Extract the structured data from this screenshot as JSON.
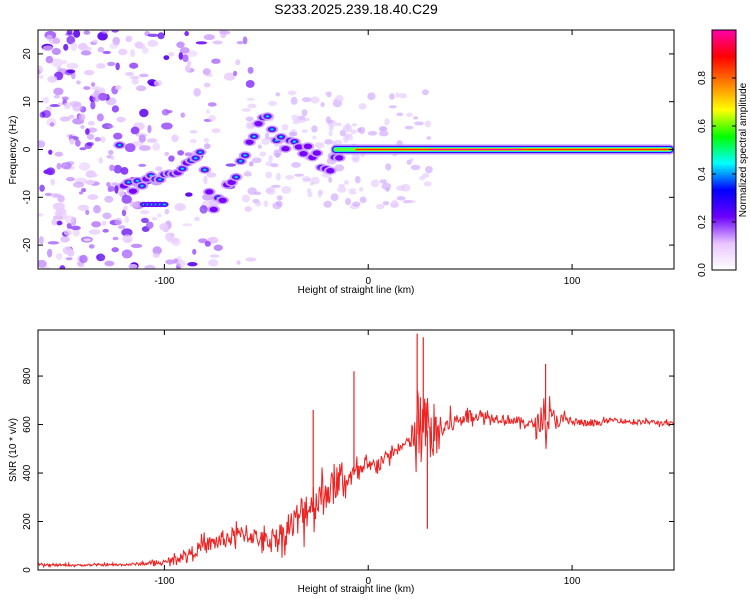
{
  "title": "S233.2025.239.18.40.C29",
  "chart_data": [
    {
      "type": "heatmap",
      "panel": "spectrogram",
      "xlabel": "Height of straight line (km)",
      "ylabel": "Frequency (Hz)",
      "xlim": [
        -162,
        150
      ],
      "ylim": [
        -25,
        25
      ],
      "xticks": [
        -100,
        0,
        100
      ],
      "yticks": [
        -20,
        -10,
        0,
        10,
        20
      ],
      "ridge": {
        "x": [
          -120,
          -110,
          -100,
          -90,
          -82,
          -76,
          -70,
          -62,
          -56,
          -50,
          -46,
          -40,
          -34,
          -28,
          -22,
          -18,
          -14,
          -8,
          0,
          10,
          20,
          30,
          60,
          80,
          100,
          120,
          148
        ],
        "y": [
          -8,
          -7,
          -5,
          -3,
          -1,
          -12,
          -9,
          -3,
          3,
          7,
          3,
          1,
          1,
          -1,
          -3,
          -4,
          -1,
          0,
          0,
          0,
          0,
          0,
          0,
          0,
          0,
          0,
          0
        ]
      },
      "colorbar": {
        "label": "Normalized spectral amplitude",
        "range": [
          0,
          1
        ],
        "ticks": [
          0.0,
          0.2,
          0.4,
          0.6,
          0.8
        ],
        "colors": [
          "#ffffff",
          "#e9c5ff",
          "#6a00ff",
          "#0000ff",
          "#00ffff",
          "#00ff00",
          "#ffff00",
          "#ff8000",
          "#ff0000",
          "#ff00aa"
        ]
      }
    },
    {
      "type": "line",
      "panel": "snr",
      "xlabel": "Height of straight line (km)",
      "ylabel": "SNR (10 * v/v)",
      "xlim": [
        -162,
        150
      ],
      "ylim": [
        0,
        990
      ],
      "xticks": [
        -100,
        0,
        100
      ],
      "yticks": [
        0,
        200,
        400,
        600,
        800
      ],
      "color": "#ee2222",
      "series": [
        {
          "name": "SNR",
          "x": [
            -162,
            -140,
            -120,
            -100,
            -90,
            -80,
            -70,
            -60,
            -50,
            -40,
            -30,
            -20,
            -10,
            0,
            10,
            20,
            24,
            28,
            32,
            40,
            50,
            60,
            70,
            80,
            88,
            95,
            110,
            120,
            130,
            140,
            150
          ],
          "y": [
            20,
            20,
            22,
            30,
            60,
            100,
            130,
            150,
            120,
            160,
            260,
            330,
            380,
            420,
            470,
            530,
            560,
            580,
            560,
            600,
            640,
            630,
            620,
            600,
            620,
            620,
            600,
            620,
            610,
            610,
            600
          ],
          "amplitude": [
            6,
            5,
            6,
            10,
            25,
            40,
            50,
            45,
            45,
            70,
            110,
            90,
            60,
            40,
            30,
            25,
            200,
            220,
            90,
            50,
            30,
            25,
            25,
            25,
            80,
            30,
            15,
            12,
            12,
            12,
            12
          ]
        }
      ],
      "peaks": [
        {
          "x": 24,
          "y": 975
        },
        {
          "x": 27,
          "y": 960
        },
        {
          "x": 87,
          "y": 850
        },
        {
          "x": -7,
          "y": 820
        },
        {
          "x": -27,
          "y": 660
        },
        {
          "x": 29,
          "y": 170
        }
      ]
    }
  ]
}
